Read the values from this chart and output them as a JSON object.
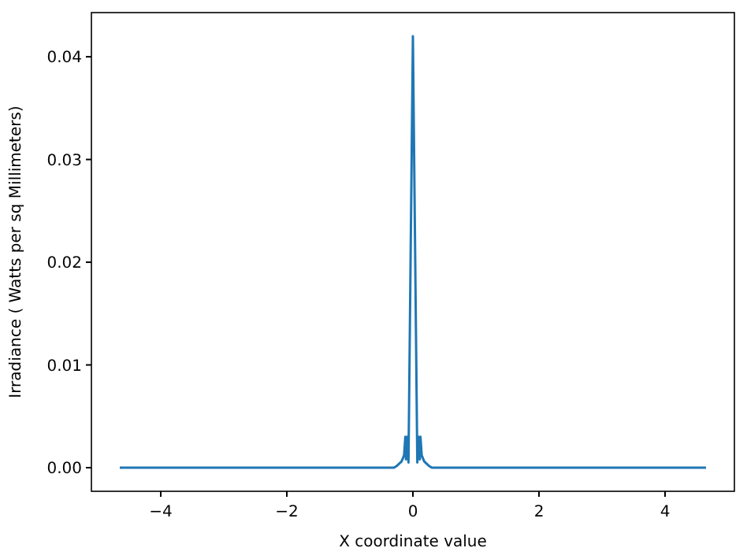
{
  "chart_data": {
    "type": "line",
    "xlabel": "X coordinate value",
    "ylabel": "Irradiance ( Watts per sq Millimeters)",
    "xlim": [
      -5.1,
      5.1
    ],
    "ylim": [
      -0.0023,
      0.0443
    ],
    "xticks": [
      {
        "value": -4,
        "label": "−4"
      },
      {
        "value": -2,
        "label": "−2"
      },
      0,
      2,
      4
    ],
    "yticks": [
      {
        "value": 0,
        "label": "0.00"
      },
      {
        "value": 0.01,
        "label": "0.01"
      },
      {
        "value": 0.02,
        "label": "0.02"
      },
      {
        "value": 0.03,
        "label": "0.03"
      },
      {
        "value": 0.04,
        "label": "0.04"
      }
    ],
    "grid": false,
    "series": [
      {
        "color": "#1f77b4",
        "x": [
          -4.65,
          -0.3,
          -0.25,
          -0.18,
          -0.14,
          -0.12,
          -0.11,
          -0.09,
          -0.07,
          0,
          0.07,
          0.09,
          0.11,
          0.12,
          0.14,
          0.18,
          0.25,
          0.3,
          4.65
        ],
        "values": [
          0,
          0,
          0.0002,
          0.0006,
          0.0012,
          0.003,
          0.0008,
          0.003,
          0.0005,
          0.042,
          0.0005,
          0.003,
          0.0008,
          0.003,
          0.0012,
          0.0006,
          0.0002,
          0,
          0
        ]
      }
    ]
  }
}
